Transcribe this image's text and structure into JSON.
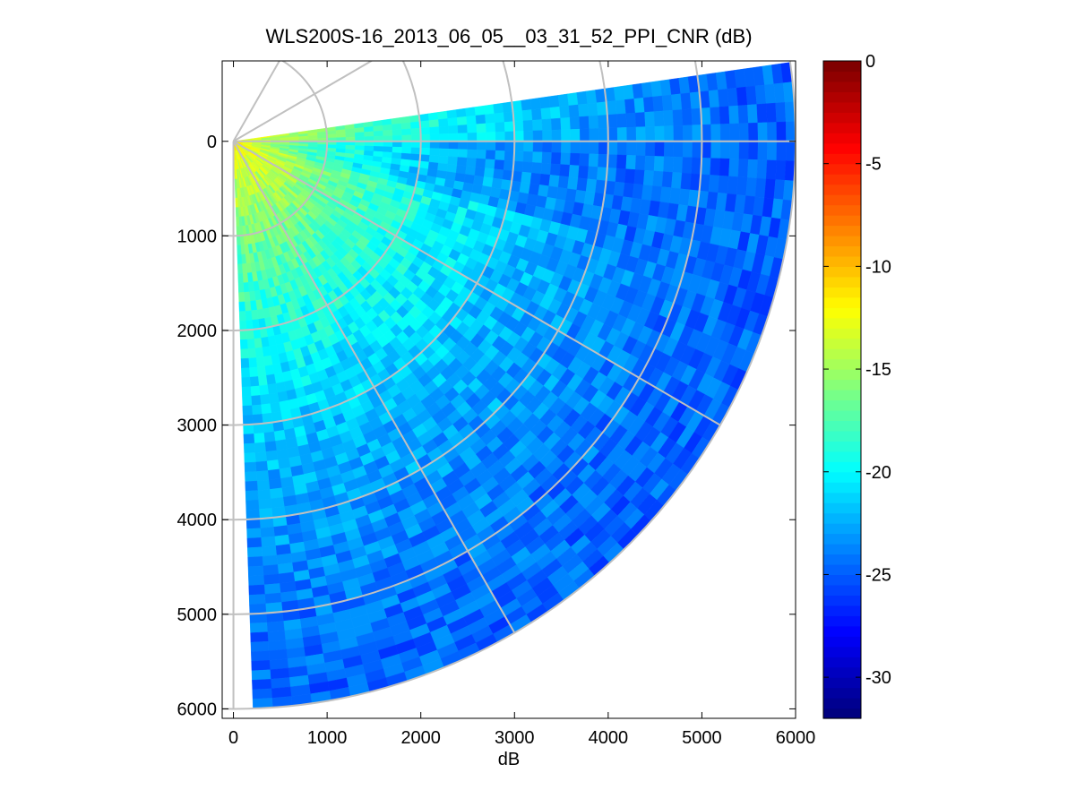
{
  "chart_data": {
    "type": "heatmap",
    "title": "WLS200S-16_2013_06_05__03_31_52_PPI_CNR (dB)",
    "xlabel": "dB",
    "ylabel": "",
    "xlim": [
      -120,
      6000
    ],
    "ylim": [
      -850,
      6100
    ],
    "y_reversed": true,
    "grid": false,
    "xticks": [
      0,
      1000,
      2000,
      3000,
      4000,
      5000,
      6000
    ],
    "xtick_labels": [
      "0",
      "1000",
      "2000",
      "3000",
      "4000",
      "5000",
      "6000"
    ],
    "yticks": [
      0,
      1000,
      2000,
      3000,
      4000,
      5000,
      6000
    ],
    "ytick_labels": [
      "0",
      "1000",
      "2000",
      "3000",
      "4000",
      "5000",
      "6000"
    ],
    "polar_overlay": {
      "origin": [
        0,
        0
      ],
      "range_rings": [
        1000,
        2000,
        3000,
        4000,
        5000,
        6000
      ],
      "spoke_angles_deg": [
        -60,
        -30,
        0,
        30,
        60,
        90
      ]
    },
    "scan_sector": {
      "angle_min_deg": -8,
      "angle_max_deg": 88,
      "range_min": 0,
      "range_max": 6000,
      "range_gate": 100,
      "angle_step_deg": 2
    },
    "cnr_model": {
      "near_peak_db": -12,
      "far_floor_db": -27,
      "decay_range": 3000,
      "low_angle_band_deg": [
        0,
        14
      ],
      "low_angle_band_db": -25,
      "noise_db": 1.5
    },
    "colorbar": {
      "colormap": "jet",
      "clim": [
        -32,
        0
      ],
      "ticks": [
        0,
        -5,
        -10,
        -15,
        -20,
        -25,
        -30
      ],
      "tick_labels": [
        "0",
        "-5",
        "-10",
        "-15",
        "-20",
        "-25",
        "-30"
      ],
      "levels": 64
    }
  },
  "colors": {
    "axes": "#000000",
    "overlay_grid": "#c0c0c0",
    "background": "#ffffff"
  }
}
